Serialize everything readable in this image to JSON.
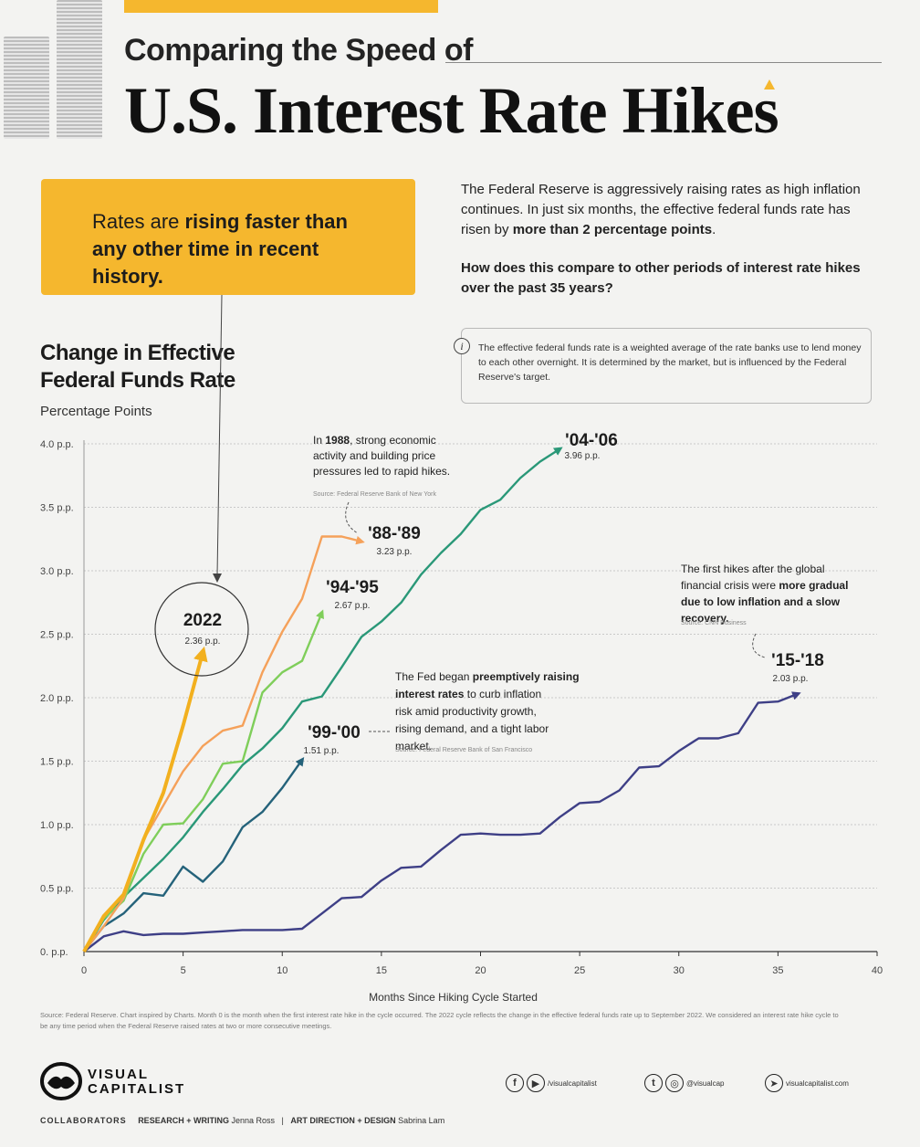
{
  "header": {
    "subtitle": "Comparing the Speed of",
    "title": "U.S. Interest Rate Hikes"
  },
  "callout": {
    "pre": "Rates are ",
    "bold": "rising faster than any other time in recent history.",
    "post": ""
  },
  "intro": {
    "part1": "The Federal Reserve is aggressively raising rates as high inflation continues. In just six months, the effective federal funds rate has risen by ",
    "bold": "more than 2 percentage points",
    "part2": ".",
    "question": "How does this compare to other periods of interest rate hikes over the past 35 years?"
  },
  "info": {
    "icon": "i",
    "text": "The effective federal funds rate is a weighted average of the rate banks use to lend money to each other overnight. It is determined by the market, but is influenced by the Federal Reserve's target."
  },
  "colors": {
    "accent": "#f5b72e",
    "c2022": "#f2b01f",
    "c8889": "#f5a15a",
    "c9495": "#7fce5a",
    "c0406": "#2a9878",
    "c9900": "#24627a",
    "c1518": "#3e3f86"
  },
  "chart_data": {
    "type": "line",
    "title": "Change in Effective Federal Funds Rate",
    "ylabel": "Percentage Points",
    "xlabel": "Months Since Hiking Cycle Started",
    "xlim": [
      0,
      40
    ],
    "ylim": [
      0,
      4
    ],
    "grid": true,
    "x_ticks": [
      0,
      5,
      10,
      15,
      20,
      25,
      30,
      35,
      40
    ],
    "y_ticks": [
      {
        "v": 4.0,
        "label": "4.0 p.p."
      },
      {
        "v": 3.5,
        "label": "3.5 p.p."
      },
      {
        "v": 3.0,
        "label": "3.0 p.p."
      },
      {
        "v": 2.5,
        "label": "2.5 p.p."
      },
      {
        "v": 2.0,
        "label": "2.0 p.p."
      },
      {
        "v": 1.5,
        "label": "1.5 p.p."
      },
      {
        "v": 1.0,
        "label": "1.0 p.p."
      },
      {
        "v": 0.5,
        "label": "0.5 p.p."
      },
      {
        "v": 0.0,
        "label": "0. p.p."
      }
    ],
    "series": [
      {
        "id": "s1518",
        "name": "'15-'18",
        "end_label": "2.03 p.p.",
        "color": "#3e3f86",
        "x": [
          0,
          1,
          2,
          3,
          4,
          5,
          6,
          7,
          8,
          9,
          10,
          11,
          12,
          13,
          14,
          15,
          16,
          17,
          18,
          19,
          20,
          21,
          22,
          23,
          24,
          25,
          26,
          27,
          28,
          29,
          30,
          31,
          32,
          33,
          34,
          35,
          36
        ],
        "y": [
          0,
          0.12,
          0.16,
          0.13,
          0.14,
          0.14,
          0.15,
          0.16,
          0.17,
          0.17,
          0.17,
          0.18,
          0.3,
          0.42,
          0.43,
          0.56,
          0.66,
          0.67,
          0.8,
          0.92,
          0.93,
          0.92,
          0.92,
          0.93,
          1.06,
          1.17,
          1.18,
          1.27,
          1.45,
          1.46,
          1.58,
          1.68,
          1.68,
          1.72,
          1.96,
          1.97,
          2.03
        ]
      },
      {
        "id": "s9900",
        "name": "'99-'00",
        "end_label": "1.51 p.p.",
        "color": "#24627a",
        "x": [
          0,
          1,
          2,
          3,
          4,
          5,
          6,
          7,
          8,
          9,
          10,
          11
        ],
        "y": [
          0,
          0.2,
          0.3,
          0.46,
          0.44,
          0.67,
          0.55,
          0.71,
          0.98,
          1.1,
          1.29,
          1.51
        ]
      },
      {
        "id": "s0406",
        "name": "'04-'06",
        "end_label": "3.96 p.p.",
        "color": "#2a9878",
        "x": [
          0,
          1,
          2,
          3,
          4,
          5,
          6,
          7,
          8,
          9,
          10,
          11,
          12,
          13,
          14,
          15,
          16,
          17,
          18,
          19,
          20,
          21,
          22,
          23,
          24
        ],
        "y": [
          0,
          0.25,
          0.43,
          0.58,
          0.73,
          0.9,
          1.1,
          1.28,
          1.47,
          1.6,
          1.76,
          1.97,
          2.01,
          2.24,
          2.48,
          2.6,
          2.75,
          2.97,
          3.14,
          3.29,
          3.48,
          3.56,
          3.73,
          3.86,
          3.96
        ]
      },
      {
        "id": "s9495",
        "name": "'94-'95",
        "end_label": "2.67 p.p.",
        "color": "#7fce5a",
        "x": [
          0,
          1,
          2,
          3,
          4,
          5,
          6,
          7,
          8,
          9,
          10,
          11,
          12
        ],
        "y": [
          0,
          0.26,
          0.4,
          0.77,
          1.0,
          1.01,
          1.2,
          1.48,
          1.5,
          2.04,
          2.2,
          2.29,
          2.67
        ]
      },
      {
        "id": "s8889",
        "name": "'88-'89",
        "end_label": "3.23 p.p.",
        "color": "#f5a15a",
        "x": [
          0,
          1,
          2,
          3,
          4,
          5,
          6,
          7,
          8,
          9,
          10,
          11,
          12,
          13,
          14
        ],
        "y": [
          0,
          0.2,
          0.42,
          0.88,
          1.15,
          1.42,
          1.62,
          1.74,
          1.78,
          2.2,
          2.52,
          2.78,
          3.27,
          3.27,
          3.23
        ]
      },
      {
        "id": "s2022",
        "name": "2022",
        "end_label": "2.36 p.p.",
        "color": "#f2b01f",
        "x": [
          0,
          1,
          2,
          3,
          4,
          5,
          6
        ],
        "y": [
          0,
          0.28,
          0.45,
          0.88,
          1.25,
          1.78,
          2.36
        ]
      }
    ],
    "annotations": {
      "a1988": {
        "pre": "In ",
        "bold": "1988",
        "post": ", strong economic activity and building price pressures led to rapid hikes.",
        "source": "Source: Federal Reserve Bank of New York"
      },
      "a1518": {
        "pre": "The first hikes after the global financial crisis were ",
        "bold": "more gradual due to low inflation and a slow recovery.",
        "post": "",
        "source": "Source: CNN Business"
      },
      "a9900": {
        "pre": "The Fed began ",
        "bold": "preemptively raising interest rates",
        "post": " to curb inflation risk amid productivity growth, rising demand, and a tight labor market.",
        "source": "Source: Federal Reserve Bank of San Francisco"
      }
    }
  },
  "footer": {
    "footnote": "Source: Federal Reserve. Chart inspired by Charts. Month 0 is the month when the first interest rate hike in the cycle occurred. The 2022 cycle reflects the change in the effective federal funds rate up to September 2022. We considered an interest rate hike cycle to be any time period when the Federal Reserve raised rates at two or more consecutive meetings.",
    "logo_line1": "VISUAL",
    "logo_line2": "CAPITALIST",
    "social1": "/visualcapitalist",
    "social2": "@visualcap",
    "social3": "visualcapitalist.com",
    "collab_label": "COLLABORATORS",
    "research_label": "RESEARCH + WRITING",
    "research_name": "Jenna Ross",
    "sep": "|",
    "design_label": "ART DIRECTION + DESIGN",
    "design_name": "Sabrina Lam"
  }
}
